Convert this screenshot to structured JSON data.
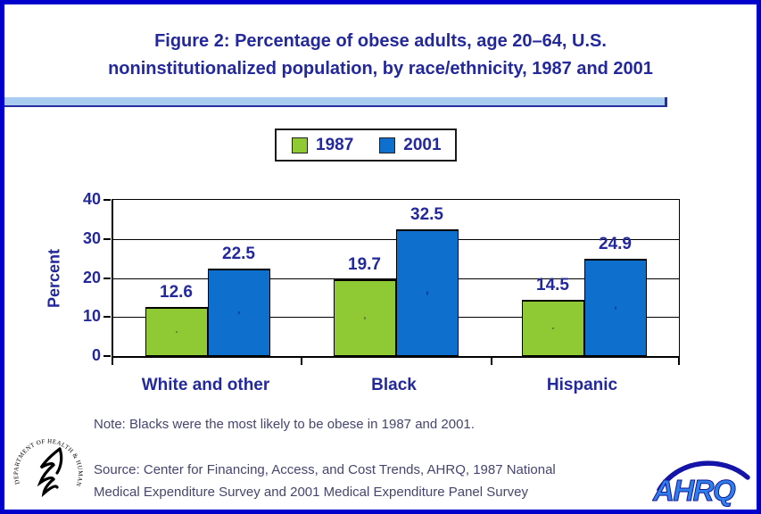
{
  "header": {
    "title_line1": "Figure 2: Percentage of obese adults, age 20–64, U.S.",
    "title_line2": "noninstitutionalized population, by race/ethnicity, 1987 and 2001"
  },
  "chart_data": {
    "type": "bar",
    "title": "Figure 2: Percentage of obese adults, age 20–64, U.S. noninstitutionalized population, by race/ethnicity, 1987 and 2001",
    "categories": [
      "White and other",
      "Black",
      "Hispanic"
    ],
    "series": [
      {
        "name": "1987",
        "color": "#8FC933",
        "values": [
          12.6,
          19.7,
          14.5
        ]
      },
      {
        "name": "2001",
        "color": "#0E6FCC",
        "values": [
          22.5,
          32.5,
          24.9
        ]
      }
    ],
    "xlabel": "",
    "ylabel": "Percent",
    "ylim": [
      0,
      40
    ],
    "yticks": [
      0,
      10,
      20,
      30,
      40
    ],
    "grid": true,
    "legend_position": "top-center"
  },
  "note": "Note: Blacks were the most likely to be obese in 1987 and 2001.",
  "source": {
    "line1": "Source: Center for Financing, Access, and Cost Trends, AHRQ, 1987 National",
    "line2": "Medical Expenditure Survey and 2001 Medical Expenditure Panel Survey"
  },
  "logos": {
    "hhs_ring_text": "DEPARTMENT OF HEALTH & HUMAN SERVICES • USA",
    "ahrq_text": "AHRQ"
  },
  "colors": {
    "page_border": "#0000CC",
    "accent_navy": "#23289B",
    "divider_fill": "#A8CCF0",
    "divider_edge": "#2B2BA0",
    "series_1987": "#8FC933",
    "series_2001": "#0E6FCC",
    "footnote_text": "#45456E"
  }
}
